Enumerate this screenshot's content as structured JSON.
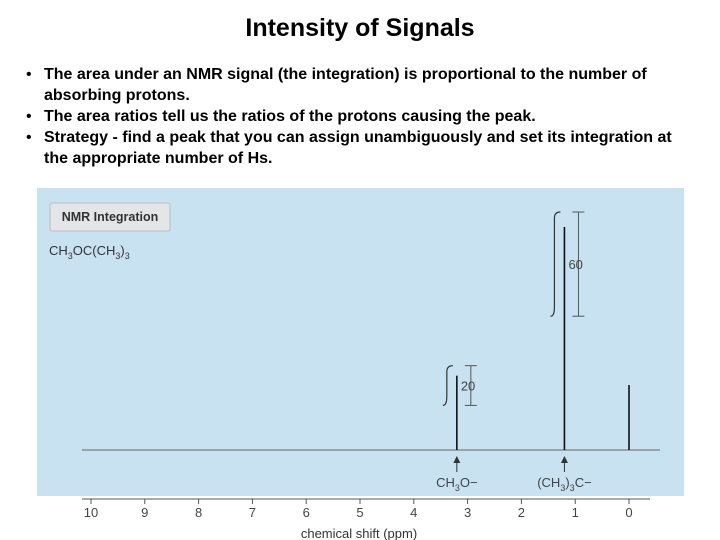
{
  "slide": {
    "title": "Intensity of Signals",
    "bullets": [
      "The area under an NMR signal (the integration) is proportional to the number of absorbing protons.",
      "The area ratios tell us the ratios of the protons causing the peak.",
      "Strategy - find a peak that you can assign unambiguously and set its integration at the appropriate number of Hs."
    ],
    "bullet_glyph": "•"
  },
  "figure": {
    "panel_label": "NMR Integration",
    "compound": {
      "p1": "CH",
      "s1": "3",
      "p2": "OC(CH",
      "s2": "3",
      "p3": ")",
      "s3": "3"
    },
    "colors": {
      "background": "#c9e2f1",
      "panel_label_bg": "#e3e5e7",
      "spectrum_line": "#111111",
      "integration_line": "#333333"
    }
  },
  "chart_data": {
    "type": "line",
    "xlabel": "chemical shift (ppm)",
    "x_ticks": [
      10,
      9,
      8,
      7,
      6,
      5,
      4,
      3,
      2,
      1,
      0
    ],
    "xlim": [
      10.5,
      -0.5
    ],
    "x_reversed": true,
    "peaks": [
      {
        "shift_ppm": 3.2,
        "integration": 20,
        "integration_label": "20",
        "assignment": {
          "p1": "CH",
          "s1": "3",
          "p2": "O−"
        }
      },
      {
        "shift_ppm": 1.2,
        "integration": 60,
        "integration_label": "60",
        "assignment": {
          "p1": "(CH",
          "s1": "3",
          "p2": ")",
          "s2": "3",
          "p3": "C−"
        }
      },
      {
        "shift_ppm": 0.0,
        "integration": null,
        "integration_label": "",
        "assignment": null
      }
    ]
  }
}
